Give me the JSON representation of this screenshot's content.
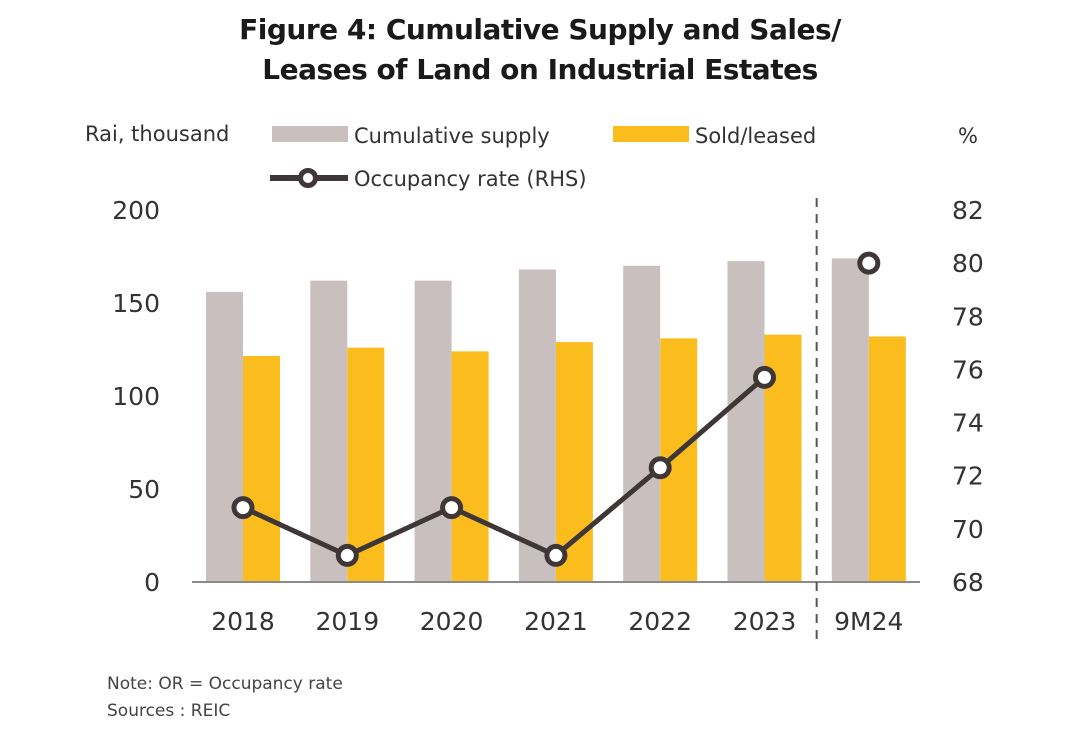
{
  "chart_data": {
    "type": "bar",
    "title_line1": "Figure 4: Cumulative Supply and Sales/",
    "title_line2": "Leases of Land on Industrial Estates",
    "ylabel_left": "Rai, thousand",
    "ylabel_right": "%",
    "categories": [
      "2018",
      "2019",
      "2020",
      "2021",
      "2022",
      "2023",
      "9M24"
    ],
    "series": [
      {
        "name": "Cumulative supply",
        "type": "bar",
        "axis": "left",
        "color": "#c9bfbe",
        "values": [
          156,
          162,
          162,
          168,
          170,
          172.5,
          174
        ]
      },
      {
        "name": "Sold/leased",
        "type": "bar",
        "axis": "left",
        "color": "#fbbd1d",
        "values": [
          121.5,
          126,
          124,
          129,
          131,
          133,
          132
        ]
      },
      {
        "name": "Occupancy rate (RHS)",
        "type": "line",
        "axis": "right",
        "color": "#3e3637",
        "values": [
          70.8,
          69.0,
          70.8,
          69.0,
          72.3,
          75.7,
          80.0
        ]
      }
    ],
    "left_axis": {
      "ylim": [
        0,
        200
      ],
      "ticks": [
        "0",
        "50",
        "100",
        "150",
        "200"
      ]
    },
    "right_axis": {
      "ylim": [
        68,
        82
      ],
      "ticks": [
        "68",
        "70",
        "72",
        "74",
        "76",
        "78",
        "80",
        "82"
      ]
    },
    "separator_before": "9M24",
    "grid": false,
    "legend_placement": "top"
  },
  "notes": {
    "note": "Note: OR = Occupancy rate",
    "source": "Sources : REIC"
  }
}
